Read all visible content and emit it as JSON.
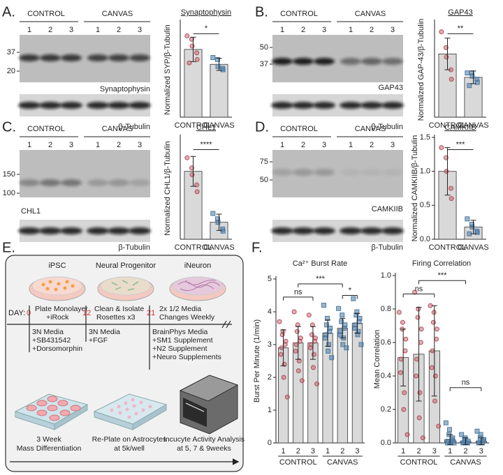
{
  "panels": [
    "A.",
    "B.",
    "C.",
    "D.",
    "E.",
    "F."
  ],
  "blots": [
    {
      "groups": [
        "CONTROL",
        "CANVAS"
      ],
      "lanes": [
        "1",
        "2",
        "3"
      ],
      "markers": [
        "37",
        "20"
      ],
      "protein": "Synaptophysin",
      "loading": "β-Tubulin"
    },
    {
      "groups": [
        "CONTROL",
        "CANVAS"
      ],
      "lanes": [
        "1",
        "2",
        "3"
      ],
      "markers": [
        "50",
        "37"
      ],
      "protein": "GAP43",
      "loading": "β-Tubulin"
    },
    {
      "groups": [
        "CONTROL",
        "CANVAS"
      ],
      "lanes": [
        "1",
        "2",
        "3"
      ],
      "markers": [
        "150",
        "100"
      ],
      "protein": "CHL1",
      "loading": "β-Tubulin"
    },
    {
      "groups": [
        "CONTROL",
        "CANVAS"
      ],
      "lanes": [
        "1",
        "2",
        "3"
      ],
      "markers": [
        "75",
        "50"
      ],
      "protein": "CAMKIIB",
      "loading": "β-Tubulin"
    }
  ],
  "protocol": {
    "stages": [
      "iPSC",
      "Neural Progenitor",
      "iNeuron"
    ],
    "day_label": "DAY:",
    "days": [
      {
        "day": "0",
        "event": [
          "Plate Monolayer",
          "+iRock"
        ]
      },
      {
        "day": "12",
        "event": [
          "Clean & Isolate",
          "Rosettes x3"
        ]
      },
      {
        "day": "21",
        "event": [
          "2x 1/2 Media",
          "Changes Weekly"
        ]
      }
    ],
    "media": [
      [
        "3N Media",
        "+SB431542",
        "+Dorsomorphin"
      ],
      [
        "3N Media",
        "+FGF"
      ],
      [
        "BrainPhys Media",
        "+SM1 Supplement",
        "+N2 Supplement",
        "+Neuro Supplements"
      ]
    ],
    "steps": [
      [
        "3 Week",
        "Mass Differentiation"
      ],
      [
        "Re-Plate on Astrocytes",
        "at 5k/well"
      ],
      [
        "Incucyte Activity Analysis",
        "at 5, 7 & 9weeks"
      ]
    ]
  },
  "chart_data": [
    {
      "type": "bar",
      "title": "Synaptophysin",
      "y_label": "Normalized SYP/β-Tubulin",
      "categories": [
        "CONTROL",
        "CANVAS"
      ],
      "values": [
        1.0,
        0.78
      ],
      "errors": [
        0.18,
        0.09
      ],
      "points": [
        [
          1.2,
          1.15,
          1.05,
          0.95,
          0.85,
          0.8
        ],
        [
          0.88,
          0.85,
          0.75,
          0.72,
          0.7
        ]
      ],
      "ylim": [
        0,
        1.4
      ],
      "bar_color": "#d9d9d9",
      "colors": [
        "#b5505b",
        "#4d7aa3"
      ],
      "comparisons": [
        {
          "text": "*",
          "from": 0,
          "to": 1
        }
      ]
    },
    {
      "type": "bar",
      "title": "GAP43",
      "y_label": "Normalized GAP-43/β-Tubulin",
      "categories": [
        "CONTROL",
        "CANVAS"
      ],
      "values": [
        1.0,
        0.63
      ],
      "errors": [
        0.25,
        0.1
      ],
      "points": [
        [
          1.35,
          1.1,
          0.95,
          0.75,
          0.6
        ],
        [
          0.7,
          0.7,
          0.65,
          0.6,
          0.55,
          0.5
        ]
      ],
      "ylim": [
        0,
        1.5
      ],
      "bar_color": "#d9d9d9",
      "colors": [
        "#b5505b",
        "#4d7aa3"
      ],
      "comparisons": [
        {
          "text": "**",
          "from": 0,
          "to": 1
        }
      ]
    },
    {
      "type": "bar",
      "title": "CHL1",
      "y_label": "Normalized CHL1/β-Tubulin",
      "categories": [
        "CONTROL",
        "CANVAS"
      ],
      "values": [
        1.0,
        0.25
      ],
      "errors": [
        0.22,
        0.12
      ],
      "points": [
        [
          1.2,
          1.05,
          0.95,
          0.8,
          0.7
        ],
        [
          0.38,
          0.3,
          0.25,
          0.15,
          0.12
        ]
      ],
      "ylim": [
        0,
        1.5
      ],
      "bar_color": "#d9d9d9",
      "colors": [
        "#b5505b",
        "#4d7aa3"
      ],
      "comparisons": [
        {
          "text": "****",
          "from": 0,
          "to": 1
        }
      ]
    },
    {
      "type": "bar",
      "title": "CAMKIIB",
      "y_label": "Normalized CAMKIIB/β-Tubulin",
      "categories": [
        "CONTROL",
        "CANVAS"
      ],
      "values": [
        1.0,
        0.18
      ],
      "errors": [
        0.35,
        0.1
      ],
      "points": [
        [
          1.35,
          1.2,
          1.0,
          0.75,
          0.6
        ],
        [
          0.3,
          0.22,
          0.18,
          0.12,
          0.1,
          0.08
        ]
      ],
      "ylim": [
        0,
        1.5
      ],
      "yticks": [
        {
          "value": 0,
          "label": "0.0"
        },
        0.5,
        {
          "value": 1,
          "label": "1.0"
        },
        1.5
      ],
      "bar_color": "#d9d9d9",
      "colors": [
        "#b5505b",
        "#4d7aa3"
      ],
      "comparisons": [
        {
          "text": "***",
          "from": 0,
          "to": 1
        }
      ]
    },
    {
      "type": "bar",
      "title": "Ca²⁺ Burst Rate",
      "y_label": "Burst Per Minute (1/min)",
      "categories": [
        "1",
        "2",
        "3",
        "1",
        "2",
        "3"
      ],
      "groups": [
        "CONTROL",
        "CANVAS"
      ],
      "values": [
        2.9,
        3.05,
        3.05,
        3.35,
        3.5,
        3.65
      ],
      "errors": [
        0.55,
        0.5,
        0.5,
        0.4,
        0.3,
        0.3
      ],
      "points": [
        [
          3.7,
          3.4,
          3.3,
          3.1,
          3.0,
          2.9,
          2.7,
          2.4,
          2.0,
          1.4
        ],
        [
          4.0,
          3.6,
          3.4,
          3.2,
          3.1,
          3.0,
          2.8,
          2.5,
          2.2,
          1.9
        ],
        [
          3.9,
          3.6,
          3.3,
          3.2,
          3.1,
          3.0,
          2.9,
          2.7,
          2.3,
          1.8
        ],
        [
          4.2,
          3.8,
          3.6,
          3.5,
          3.4,
          3.3,
          3.2,
          3.0,
          2.8,
          2.6
        ],
        [
          4.1,
          3.9,
          3.7,
          3.6,
          3.5,
          3.4,
          3.3,
          3.2,
          3.0,
          2.9
        ],
        [
          4.4,
          4.0,
          3.9,
          3.8,
          3.7,
          3.6,
          3.5,
          3.4,
          3.3,
          3.0
        ]
      ],
      "ylim": [
        0,
        5
      ],
      "yticks": [
        0,
        1,
        2,
        3,
        4,
        5
      ],
      "bar_color": "#d9d9d9",
      "colors": [
        "#b5505b",
        "#4d7aa3"
      ],
      "comparisons": [
        {
          "text": "ns",
          "from": 0,
          "to": 2
        },
        {
          "text": "***",
          "from": 1,
          "to": 4
        },
        {
          "text": "*",
          "from": 4,
          "to": 5
        }
      ]
    },
    {
      "type": "bar",
      "title": "Firing Correlation",
      "y_label": "Mean Correlation",
      "categories": [
        "1",
        "2",
        "3",
        "1",
        "2",
        "3"
      ],
      "groups": [
        "CONTROL",
        "CANVAS"
      ],
      "values": [
        0.51,
        0.53,
        0.55,
        0.02,
        0.01,
        0.01
      ],
      "errors": [
        0.17,
        0.28,
        0.27,
        0.03,
        0.02,
        0.02
      ],
      "points": [
        [
          0.78,
          0.72,
          0.68,
          0.62,
          0.55,
          0.5,
          0.42,
          0.3,
          0.2,
          0.05
        ],
        [
          0.9,
          0.8,
          0.75,
          0.68,
          0.6,
          0.5,
          0.4,
          0.3,
          0.15,
          0.03
        ],
        [
          0.82,
          0.78,
          0.72,
          0.68,
          0.62,
          0.55,
          0.45,
          0.4,
          0.25,
          0.1
        ],
        [
          0.12,
          0.08,
          0.05,
          0.03,
          0.02,
          0.01,
          0.0,
          0.0,
          0.0,
          0.0
        ],
        [
          0.05,
          0.03,
          0.02,
          0.01,
          0.0,
          0.0,
          0.0,
          0.0
        ],
        [
          0.07,
          0.05,
          0.03,
          0.02,
          0.01,
          0.0,
          0.0,
          0.0
        ]
      ],
      "ylim": [
        0,
        1
      ],
      "yticks": [
        {
          "value": 0,
          "label": "0.0"
        },
        0.2,
        0.4,
        0.6,
        0.8,
        {
          "value": 1,
          "label": "1.0"
        }
      ],
      "bar_color": "#d9d9d9",
      "colors": [
        "#b5505b",
        "#4d7aa3"
      ],
      "comparisons": [
        {
          "text": "ns",
          "from": 0,
          "to": 2
        },
        {
          "text": "***",
          "from": 1,
          "to": 4
        },
        {
          "text": "ns",
          "from": 3,
          "to": 5
        }
      ]
    }
  ]
}
